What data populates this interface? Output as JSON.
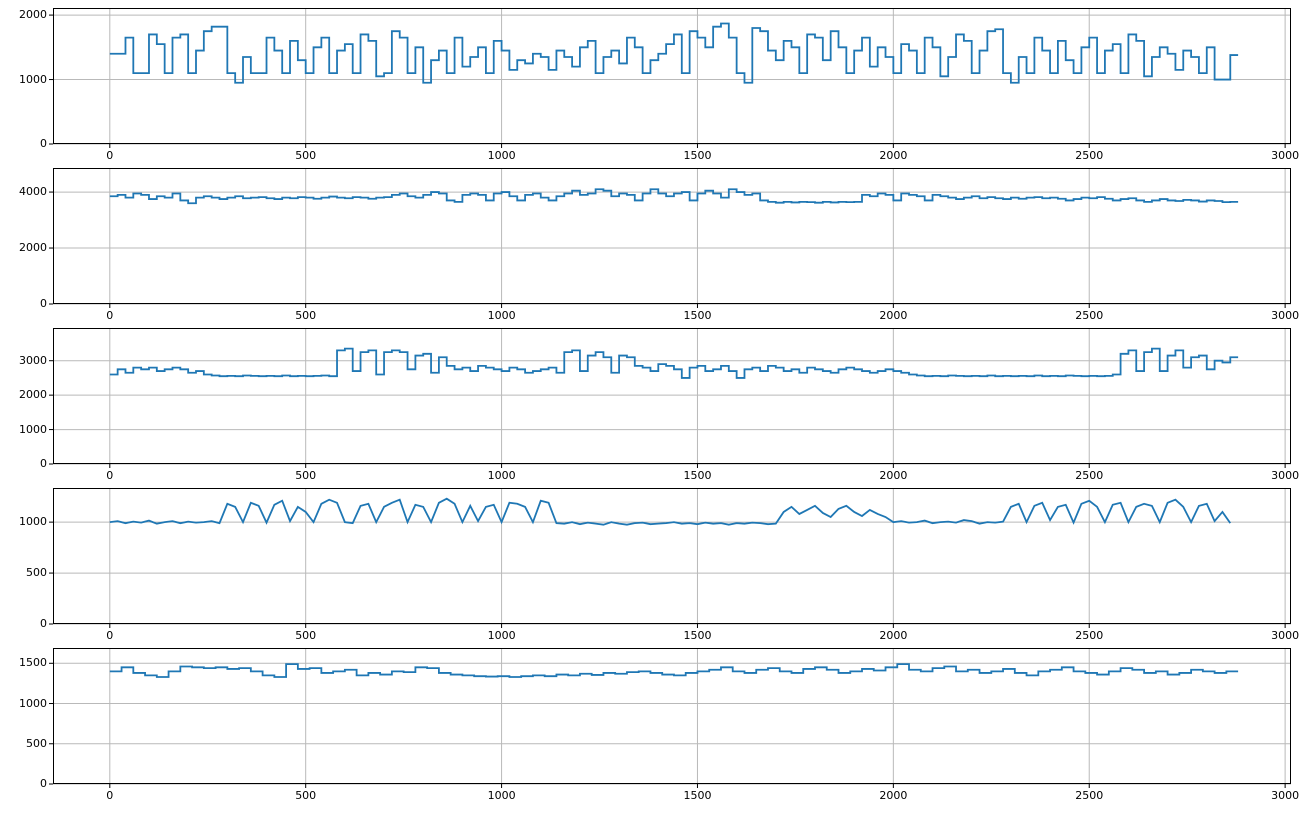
{
  "figure": {
    "background": "#ffffff",
    "colors": {
      "line": "#1f77b4",
      "grid": "#b9b9b9",
      "spine": "#000000",
      "tick_text": "#000000"
    }
  },
  "chart_data": [
    {
      "type": "line",
      "title": "",
      "xlabel": "",
      "ylabel": "",
      "draw": "step",
      "grid": true,
      "legend": null,
      "line_color": "#1f77b4",
      "xlim": [
        -145,
        3015
      ],
      "ylim": [
        0,
        2110
      ],
      "xticks": [
        0,
        500,
        1000,
        1500,
        2000,
        2500,
        3000
      ],
      "yticks": [
        0,
        1000,
        2000
      ],
      "x_start": 0,
      "x_step": 20,
      "values": [
        1400,
        1400,
        1650,
        1100,
        1100,
        1700,
        1550,
        1100,
        1650,
        1700,
        1100,
        1450,
        1750,
        1820,
        1820,
        1100,
        950,
        1350,
        1100,
        1100,
        1650,
        1450,
        1100,
        1600,
        1300,
        1100,
        1500,
        1650,
        1100,
        1450,
        1550,
        1100,
        1700,
        1600,
        1050,
        1100,
        1750,
        1650,
        1100,
        1500,
        950,
        1300,
        1450,
        1100,
        1650,
        1200,
        1350,
        1500,
        1100,
        1600,
        1450,
        1150,
        1300,
        1250,
        1400,
        1350,
        1150,
        1450,
        1350,
        1200,
        1500,
        1600,
        1100,
        1350,
        1450,
        1250,
        1650,
        1500,
        1100,
        1300,
        1400,
        1550,
        1700,
        1100,
        1750,
        1650,
        1500,
        1820,
        1870,
        1650,
        1100,
        950,
        1800,
        1750,
        1450,
        1300,
        1600,
        1500,
        1100,
        1700,
        1650,
        1300,
        1750,
        1500,
        1100,
        1450,
        1650,
        1200,
        1500,
        1350,
        1100,
        1550,
        1450,
        1100,
        1650,
        1500,
        1050,
        1350,
        1700,
        1600,
        1100,
        1450,
        1750,
        1780,
        1100,
        950,
        1350,
        1100,
        1650,
        1450,
        1100,
        1600,
        1300,
        1100,
        1500,
        1650,
        1100,
        1450,
        1550,
        1100,
        1700,
        1600,
        1050,
        1350,
        1500,
        1400,
        1150,
        1450,
        1350,
        1100,
        1500,
        1000,
        1000,
        1380
      ]
    },
    {
      "type": "line",
      "title": "",
      "xlabel": "",
      "ylabel": "",
      "draw": "step",
      "grid": true,
      "legend": null,
      "line_color": "#1f77b4",
      "xlim": [
        -145,
        3015
      ],
      "ylim": [
        0,
        4860
      ],
      "xticks": [
        0,
        500,
        1000,
        1500,
        2000,
        2500,
        3000
      ],
      "yticks": [
        0,
        2000,
        4000
      ],
      "x_start": 0,
      "x_step": 20,
      "values": [
        3850,
        3900,
        3800,
        3950,
        3900,
        3750,
        3850,
        3800,
        3950,
        3700,
        3600,
        3800,
        3850,
        3800,
        3750,
        3800,
        3850,
        3780,
        3800,
        3820,
        3780,
        3750,
        3800,
        3780,
        3820,
        3800,
        3760,
        3800,
        3840,
        3800,
        3780,
        3820,
        3800,
        3760,
        3800,
        3820,
        3900,
        3950,
        3850,
        3800,
        3900,
        4000,
        3950,
        3700,
        3650,
        3900,
        3950,
        3900,
        3700,
        3950,
        4000,
        3850,
        3700,
        3900,
        3950,
        3800,
        3700,
        3850,
        3950,
        4050,
        3900,
        3950,
        4100,
        4050,
        3850,
        3950,
        3900,
        3700,
        3950,
        4100,
        3950,
        3850,
        3950,
        4000,
        3700,
        3950,
        4050,
        3950,
        3800,
        4100,
        4000,
        3900,
        3950,
        3700,
        3650,
        3620,
        3650,
        3630,
        3650,
        3640,
        3620,
        3650,
        3630,
        3650,
        3640,
        3650,
        3900,
        3850,
        3950,
        3900,
        3700,
        3950,
        3900,
        3850,
        3700,
        3900,
        3850,
        3800,
        3750,
        3800,
        3850,
        3780,
        3820,
        3780,
        3750,
        3800,
        3760,
        3800,
        3820,
        3780,
        3800,
        3760,
        3700,
        3750,
        3800,
        3780,
        3820,
        3760,
        3700,
        3750,
        3780,
        3700,
        3650,
        3700,
        3750,
        3700,
        3680,
        3720,
        3700,
        3660,
        3700,
        3680,
        3640,
        3650
      ]
    },
    {
      "type": "line",
      "title": "",
      "xlabel": "",
      "ylabel": "",
      "draw": "step",
      "grid": true,
      "legend": null,
      "line_color": "#1f77b4",
      "xlim": [
        -145,
        3015
      ],
      "ylim": [
        0,
        3950
      ],
      "xticks": [
        0,
        500,
        1000,
        1500,
        2000,
        2500,
        3000
      ],
      "yticks": [
        0,
        1000,
        2000,
        3000
      ],
      "x_start": 0,
      "x_step": 20,
      "values": [
        2600,
        2750,
        2650,
        2800,
        2750,
        2800,
        2700,
        2750,
        2800,
        2750,
        2650,
        2700,
        2600,
        2570,
        2550,
        2560,
        2550,
        2570,
        2560,
        2550,
        2560,
        2550,
        2570,
        2550,
        2560,
        2550,
        2560,
        2570,
        2550,
        3300,
        3350,
        2700,
        3250,
        3300,
        2600,
        3250,
        3300,
        3250,
        2750,
        3150,
        3200,
        2650,
        3100,
        2850,
        2750,
        2800,
        2700,
        2850,
        2800,
        2750,
        2700,
        2800,
        2750,
        2650,
        2700,
        2750,
        2800,
        2650,
        3250,
        3300,
        2700,
        3150,
        3250,
        3100,
        2650,
        3150,
        3100,
        2850,
        2800,
        2700,
        2900,
        2850,
        2750,
        2500,
        2800,
        2850,
        2700,
        2750,
        2850,
        2700,
        2500,
        2750,
        2800,
        2700,
        2850,
        2800,
        2700,
        2750,
        2650,
        2800,
        2750,
        2700,
        2650,
        2750,
        2800,
        2750,
        2700,
        2650,
        2700,
        2750,
        2700,
        2650,
        2600,
        2570,
        2550,
        2560,
        2550,
        2570,
        2560,
        2550,
        2560,
        2550,
        2570,
        2550,
        2560,
        2550,
        2560,
        2550,
        2570,
        2550,
        2560,
        2550,
        2570,
        2560,
        2550,
        2560,
        2550,
        2560,
        2600,
        3200,
        3300,
        2700,
        3250,
        3350,
        2700,
        3150,
        3300,
        2800,
        3100,
        3150,
        2750,
        3000,
        2950,
        3100
      ]
    },
    {
      "type": "line",
      "title": "",
      "xlabel": "",
      "ylabel": "",
      "draw": "linear",
      "grid": true,
      "legend": null,
      "line_color": "#1f77b4",
      "xlim": [
        -145,
        3015
      ],
      "ylim": [
        0,
        1335
      ],
      "xticks": [
        0,
        500,
        1000,
        1500,
        2000,
        2500,
        3000
      ],
      "yticks": [
        0,
        500,
        1000
      ],
      "x_start": 0,
      "x_step": 20,
      "values": [
        1000,
        1010,
        990,
        1005,
        995,
        1015,
        985,
        1000,
        1010,
        990,
        1005,
        995,
        1000,
        1010,
        990,
        1180,
        1150,
        1000,
        1190,
        1160,
        995,
        1170,
        1210,
        1010,
        1150,
        1100,
        1000,
        1180,
        1220,
        1190,
        1000,
        990,
        1160,
        1180,
        1000,
        1150,
        1190,
        1220,
        1000,
        1170,
        1150,
        1000,
        1190,
        1230,
        1180,
        1000,
        1160,
        1010,
        1150,
        1170,
        1000,
        1190,
        1180,
        1150,
        1000,
        1210,
        1190,
        990,
        985,
        1000,
        980,
        995,
        985,
        975,
        1000,
        985,
        975,
        990,
        995,
        980,
        985,
        990,
        1000,
        985,
        990,
        980,
        995,
        985,
        990,
        975,
        990,
        985,
        995,
        990,
        980,
        985,
        1100,
        1150,
        1080,
        1120,
        1160,
        1090,
        1050,
        1130,
        1160,
        1100,
        1060,
        1120,
        1080,
        1050,
        1000,
        1010,
        995,
        1000,
        1015,
        990,
        1000,
        1005,
        995,
        1020,
        1010,
        985,
        1000,
        995,
        1005,
        1150,
        1180,
        1000,
        1160,
        1190,
        1020,
        1150,
        1170,
        995,
        1180,
        1210,
        1150,
        1000,
        1170,
        1190,
        1000,
        1150,
        1180,
        1160,
        1000,
        1190,
        1220,
        1150,
        1000,
        1160,
        1180,
        1010,
        1100,
        990
      ]
    },
    {
      "type": "line",
      "title": "",
      "xlabel": "",
      "ylabel": "",
      "draw": "step",
      "grid": true,
      "legend": null,
      "line_color": "#1f77b4",
      "xlim": [
        -145,
        3015
      ],
      "ylim": [
        0,
        1690
      ],
      "xticks": [
        0,
        500,
        1000,
        1500,
        2000,
        2500,
        3000
      ],
      "yticks": [
        0,
        500,
        1000,
        1500
      ],
      "x_start": 0,
      "x_step": 30,
      "values": [
        1400,
        1450,
        1380,
        1350,
        1330,
        1400,
        1460,
        1450,
        1440,
        1450,
        1430,
        1440,
        1400,
        1350,
        1330,
        1490,
        1430,
        1440,
        1380,
        1400,
        1420,
        1350,
        1380,
        1360,
        1400,
        1390,
        1450,
        1440,
        1380,
        1360,
        1350,
        1340,
        1335,
        1340,
        1330,
        1340,
        1350,
        1340,
        1360,
        1350,
        1370,
        1355,
        1380,
        1370,
        1390,
        1400,
        1380,
        1360,
        1350,
        1380,
        1400,
        1420,
        1450,
        1400,
        1380,
        1420,
        1440,
        1400,
        1380,
        1430,
        1450,
        1420,
        1380,
        1400,
        1430,
        1410,
        1450,
        1490,
        1420,
        1400,
        1440,
        1460,
        1400,
        1420,
        1380,
        1400,
        1430,
        1380,
        1350,
        1400,
        1420,
        1450,
        1400,
        1380,
        1360,
        1400,
        1440,
        1420,
        1380,
        1400,
        1360,
        1380,
        1420,
        1400,
        1380,
        1400
      ]
    }
  ]
}
